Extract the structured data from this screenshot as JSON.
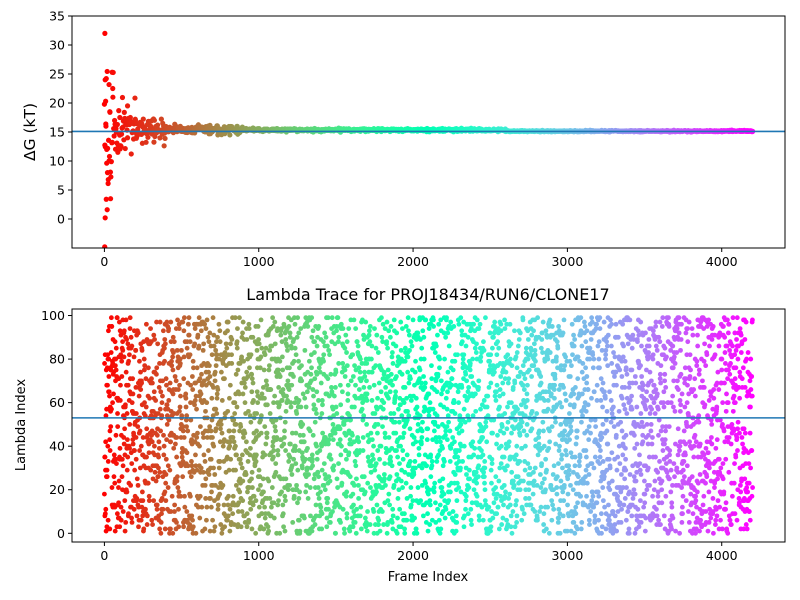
{
  "chart_data": [
    {
      "type": "scatter",
      "title": "",
      "xlabel": "",
      "ylabel": "ΔG (kT)",
      "xlim": [
        -210,
        4410
      ],
      "ylim": [
        -5,
        35
      ],
      "xticks": [
        0,
        1000,
        2000,
        3000,
        4000
      ],
      "yticks": [
        0,
        5,
        10,
        15,
        20,
        25,
        30,
        35
      ],
      "reference_line": 15.1,
      "reference_color": "#1f77b4",
      "colormap": "rainbow (red at frame 0 to violet at frame 4200)",
      "grid": false,
      "n_points": 4200,
      "sample_points": [
        {
          "x": 3,
          "y": 32
        },
        {
          "x": 5,
          "y": 24
        },
        {
          "x": 12,
          "y": 24.2
        },
        {
          "x": 8,
          "y": 20.3
        },
        {
          "x": 10,
          "y": 16
        },
        {
          "x": 15,
          "y": 12
        },
        {
          "x": 20,
          "y": 8
        },
        {
          "x": 25,
          "y": 6.8
        },
        {
          "x": 30,
          "y": 10
        },
        {
          "x": 35,
          "y": 18.5
        },
        {
          "x": 40,
          "y": 3.5
        },
        {
          "x": 50,
          "y": 25.3
        },
        {
          "x": 55,
          "y": 21
        },
        {
          "x": 5,
          "y": 0.2
        },
        {
          "x": 18,
          "y": 1.6
        },
        {
          "x": 2,
          "y": -4.8
        },
        {
          "x": 100,
          "y": 17.5
        },
        {
          "x": 150,
          "y": 19.5
        },
        {
          "x": 200,
          "y": 17.2
        },
        {
          "x": 300,
          "y": 16
        },
        {
          "x": 500,
          "y": 15.6
        },
        {
          "x": 1000,
          "y": 15.4
        },
        {
          "x": 2000,
          "y": 15.3
        },
        {
          "x": 4200,
          "y": 15.1
        }
      ]
    },
    {
      "type": "scatter",
      "title": "Lambda Trace for PROJ18434/RUN6/CLONE17",
      "xlabel": "Frame Index",
      "ylabel": "Lambda Index",
      "xlim": [
        -210,
        4410
      ],
      "ylim": [
        -4,
        103
      ],
      "xticks": [
        0,
        1000,
        2000,
        3000,
        4000
      ],
      "yticks": [
        0,
        20,
        40,
        60,
        80,
        100
      ],
      "reference_line": 53,
      "reference_color": "#1f77b4",
      "colormap": "rainbow (red at frame 0 to violet at frame 4200)",
      "grid": false,
      "n_points": 4200,
      "value_range": [
        0,
        99
      ],
      "distribution": "approximately uniform over lambda index 0–99 at every frame"
    }
  ]
}
